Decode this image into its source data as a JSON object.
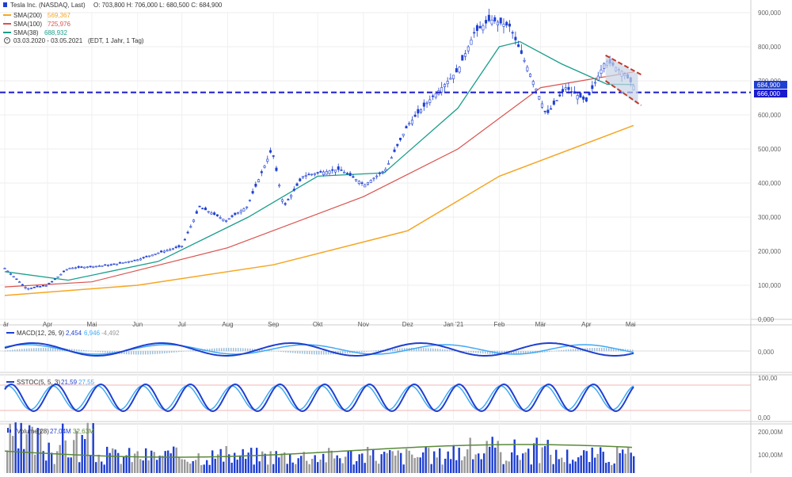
{
  "header": {
    "title": "Tesla Inc. (NASDAQ, Last)",
    "ohlc": "O: 703,800  H: 706,000  L: 680,500  C: 684,900",
    "sma200_label": "SMA(200)",
    "sma200_value": "569,367",
    "sma100_label": "SMA(100)",
    "sma100_value": "725,976",
    "sma38_label": "SMA(38)",
    "sma38_value": "688,932",
    "range": "03.03.2020 - 03.05.2021",
    "range_note": "(EDT, 1 Jahr, 1 Tag)"
  },
  "colors": {
    "sma200": "#f5a623",
    "sma100": "#d9534f",
    "sma38": "#1a9e8c",
    "candle": "#1f3fd1",
    "hline": "#1a1acc",
    "channel": "#c0392b",
    "macd": "#1f3fd1",
    "signal": "#3fa9f5",
    "stoch_k": "#1f3fd1",
    "stoch_d": "#3fa9f5",
    "volume": "#1f3fd1",
    "volume_down": "#9a9a9a",
    "volume_avg": "#5a8a3a"
  },
  "price_labels": {
    "current": "684,900",
    "level": "666,000"
  },
  "macd_label": {
    "name": "MACD(12, 26, 9)",
    "v1": "2,454",
    "v2": "6,946",
    "v3": "-4,492"
  },
  "stoch_label": {
    "name": "SSTOC(5, 5, 3)",
    "v1": "21,59",
    "v2": "27,55"
  },
  "volume_label": {
    "name": "Volume(28)",
    "v1": "27,04M",
    "v2": "32,63M"
  },
  "chart_data": {
    "type": "candlestick",
    "x_ticks": [
      "är",
      "Apr",
      "Mai",
      "Jun",
      "Jul",
      "Aug",
      "Sep",
      "Okt",
      "Nov",
      "Dez",
      "Jan '21",
      "Feb",
      "Mär",
      "Apr",
      "Mai"
    ],
    "y_ticks": [
      "900,000",
      "800,000",
      "700,000",
      "600,000",
      "500,000",
      "400,000",
      "300,000",
      "200,000",
      "100,000",
      "0,000"
    ],
    "ylim": [
      0,
      900
    ],
    "horizontal_level": 666,
    "last_close": 684.9,
    "close_path": [
      [
        "2020-03-03",
        150
      ],
      [
        "2020-03-18",
        90
      ],
      [
        "2020-04-01",
        100
      ],
      [
        "2020-04-15",
        150
      ],
      [
        "2020-05-01",
        155
      ],
      [
        "2020-05-15",
        160
      ],
      [
        "2020-06-01",
        175
      ],
      [
        "2020-06-15",
        195
      ],
      [
        "2020-07-01",
        215
      ],
      [
        "2020-07-13",
        330
      ],
      [
        "2020-07-31",
        290
      ],
      [
        "2020-08-14",
        330
      ],
      [
        "2020-08-31",
        500
      ],
      [
        "2020-09-08",
        330
      ],
      [
        "2020-09-21",
        420
      ],
      [
        "2020-10-01",
        430
      ],
      [
        "2020-10-16",
        440
      ],
      [
        "2020-11-02",
        395
      ],
      [
        "2020-11-16",
        440
      ],
      [
        "2020-12-01",
        570
      ],
      [
        "2020-12-15",
        640
      ],
      [
        "2021-01-04",
        730
      ],
      [
        "2021-01-15",
        840
      ],
      [
        "2021-01-26",
        880
      ],
      [
        "2021-02-08",
        860
      ],
      [
        "2021-02-22",
        720
      ],
      [
        "2021-03-05",
        600
      ],
      [
        "2021-03-18",
        680
      ],
      [
        "2021-04-01",
        640
      ],
      [
        "2021-04-14",
        760
      ],
      [
        "2021-04-26",
        725
      ],
      [
        "2021-05-03",
        685
      ]
    ],
    "sma200_path": [
      [
        "2020-03-03",
        70
      ],
      [
        "2020-06-01",
        100
      ],
      [
        "2020-09-01",
        160
      ],
      [
        "2020-12-01",
        260
      ],
      [
        "2021-02-01",
        420
      ],
      [
        "2021-05-03",
        569
      ]
    ],
    "sma100_path": [
      [
        "2020-03-03",
        95
      ],
      [
        "2020-05-01",
        110
      ],
      [
        "2020-08-01",
        210
      ],
      [
        "2020-11-01",
        360
      ],
      [
        "2021-01-04",
        500
      ],
      [
        "2021-03-01",
        680
      ],
      [
        "2021-05-03",
        726
      ]
    ],
    "sma38_path": [
      [
        "2020-03-03",
        140
      ],
      [
        "2020-04-15",
        115
      ],
      [
        "2020-06-15",
        170
      ],
      [
        "2020-08-15",
        300
      ],
      [
        "2020-10-01",
        420
      ],
      [
        "2020-11-15",
        430
      ],
      [
        "2021-01-04",
        620
      ],
      [
        "2021-02-01",
        800
      ],
      [
        "2021-02-15",
        815
      ],
      [
        "2021-03-15",
        750
      ],
      [
        "2021-04-15",
        690
      ],
      [
        "2021-05-03",
        689
      ]
    ],
    "panels": [
      {
        "name": "MACD(12, 26, 9)",
        "y_ticks": [
          "0,000"
        ]
      },
      {
        "name": "SSTOC(5, 5, 3)",
        "y_ticks": [
          "100,00",
          "0,00"
        ]
      },
      {
        "name": "Volume(28)",
        "y_ticks": [
          "200,00M",
          "100,00M"
        ]
      }
    ]
  }
}
